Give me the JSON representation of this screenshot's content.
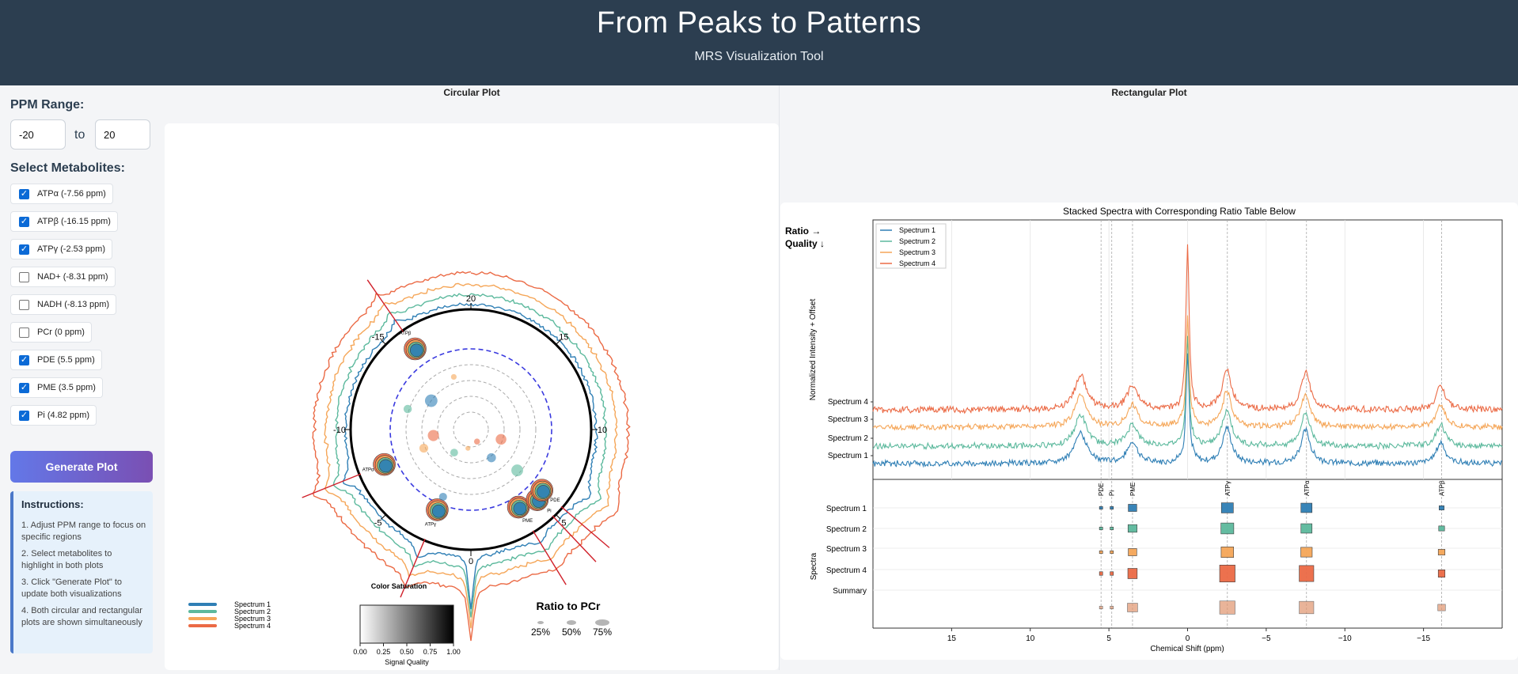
{
  "header": {
    "title": "From Peaks to Patterns",
    "subtitle": "MRS Visualization Tool"
  },
  "sidebar": {
    "ppm_label": "PPM Range:",
    "ppm_min": "-20",
    "ppm_to": "to",
    "ppm_max": "20",
    "metabolites_label": "Select Metabolites:",
    "metabolites": [
      {
        "label": "ATPα (-7.56 ppm)",
        "checked": true
      },
      {
        "label": "ATPβ (-16.15 ppm)",
        "checked": true
      },
      {
        "label": "ATPγ (-2.53 ppm)",
        "checked": true
      },
      {
        "label": "NAD+ (-8.31 ppm)",
        "checked": false
      },
      {
        "label": "NADH (-8.13 ppm)",
        "checked": false
      },
      {
        "label": "PCr (0 ppm)",
        "checked": false
      },
      {
        "label": "PDE (5.5 ppm)",
        "checked": true
      },
      {
        "label": "PME (3.5 ppm)",
        "checked": true
      },
      {
        "label": "Pi (4.82 ppm)",
        "checked": true
      }
    ],
    "generate_label": "Generate Plot",
    "instructions_title": "Instructions:",
    "instructions": [
      "1. Adjust PPM range to focus on specific regions",
      "2. Select metabolites to highlight in both plots",
      "3. Click \"Generate Plot\" to update both visualizations",
      "4. Both circular and rectangular plots are shown simultaneously"
    ]
  },
  "circular": {
    "panel_title": "Circular Plot",
    "tick_labels": [
      "0",
      "5",
      "10",
      "15",
      "20",
      "-15",
      "-10",
      "-5"
    ],
    "metabolite_labels": [
      "ATPγ",
      "PME",
      "Pi",
      "PDE",
      "ATPα",
      "ATPβ"
    ],
    "legend": [
      "Spectrum 1",
      "Spectrum 2",
      "Spectrum 3",
      "Spectrum 4"
    ],
    "colorbar_title": "Color Saturation",
    "colorbar_ticks": [
      "0.00",
      "0.25",
      "0.50",
      "0.75",
      "1.00"
    ],
    "colorbar_label": "Signal Quality",
    "size_legend_title": "Ratio to PCr",
    "size_legend_items": [
      "25%",
      "50%",
      "75%"
    ]
  },
  "rect": {
    "panel_title": "Rectangular Plot",
    "ratio_note_1": "Ratio →",
    "ratio_note_2": "Quality ↓",
    "ylabel_top": "Normalized Intensity + Offset",
    "ylabel_bottom": "Spectra",
    "xlabel": "Chemical Shift (ppm)",
    "metabolite_ticks": [
      "PDE",
      "Pi",
      "PME",
      "ATPγ",
      "ATPα",
      "ATPβ"
    ],
    "table_rows": [
      "Spectrum 1",
      "Spectrum 2",
      "Spectrum 3",
      "Spectrum 4",
      "Summary"
    ]
  },
  "colors": {
    "spectrum_1": "#2f7fb5",
    "spectrum_2": "#5cb99d",
    "spectrum_3": "#f5a658",
    "spectrum_4": "#eb6a45",
    "header_bg": "#2c3e50"
  },
  "chart_data": {
    "type": "line",
    "title": "Stacked Spectra with Corresponding Ratio Table Below",
    "xlabel": "Chemical Shift (ppm)",
    "ylabel": "Normalized Intensity + Offset",
    "xlim": [
      20,
      -20
    ],
    "x_ticks": [
      15,
      10,
      5,
      0,
      -5,
      -10,
      -15
    ],
    "legend_position": "top-left",
    "series": [
      {
        "name": "Spectrum 1",
        "offset": 0
      },
      {
        "name": "Spectrum 2",
        "offset": 1
      },
      {
        "name": "Spectrum 3",
        "offset": 2
      },
      {
        "name": "Spectrum 4",
        "offset": 3
      }
    ],
    "peaks": [
      {
        "ppm": 6.8,
        "height": 1.3,
        "width": 0.45
      },
      {
        "ppm": 3.5,
        "height": 0.9,
        "width": 0.4
      },
      {
        "ppm": 0,
        "height": 6.2,
        "width": 0.12
      },
      {
        "ppm": -2.5,
        "height": 1.5,
        "width": 0.35
      },
      {
        "ppm": -7.5,
        "height": 1.4,
        "width": 0.35
      },
      {
        "ppm": -16.1,
        "height": 0.9,
        "width": 0.35
      }
    ],
    "ratio_table": {
      "columns": [
        "PDE",
        "Pi",
        "PME",
        "ATPγ",
        "ATPα",
        "ATPβ"
      ],
      "ppm": [
        5.5,
        4.82,
        3.5,
        -2.53,
        -7.56,
        -16.15
      ],
      "rows": [
        "Spectrum 1",
        "Spectrum 2",
        "Spectrum 3",
        "Spectrum 4",
        "Summary"
      ],
      "ratios": [
        [
          0.05,
          0.05,
          0.35,
          0.55,
          0.5,
          0.15
        ],
        [
          0.05,
          0.05,
          0.38,
          0.6,
          0.5,
          0.2
        ],
        [
          0.05,
          0.05,
          0.35,
          0.58,
          0.52,
          0.25
        ],
        [
          0.05,
          0.05,
          0.4,
          0.75,
          0.7,
          0.25
        ],
        [
          0.05,
          0.05,
          0.45,
          0.75,
          0.7,
          0.3
        ]
      ]
    }
  }
}
